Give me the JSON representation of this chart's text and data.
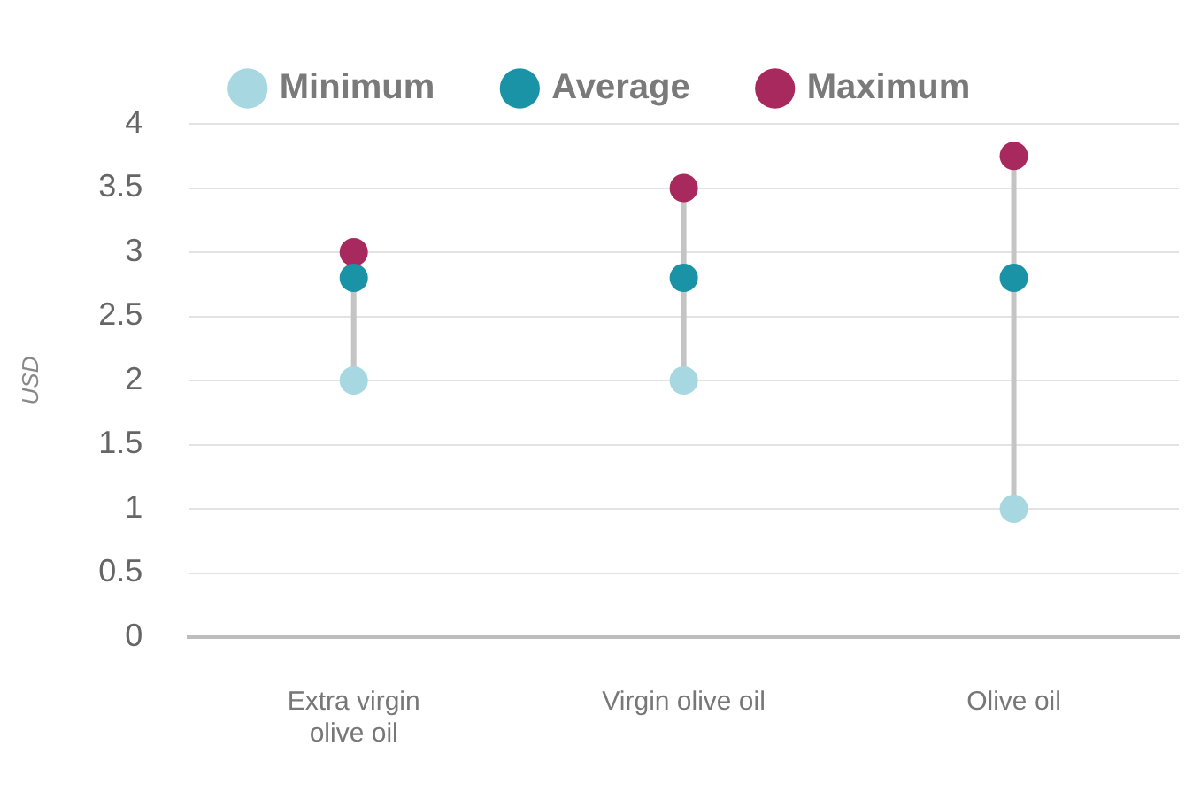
{
  "chart_data": {
    "type": "scatter",
    "ylabel": "USD",
    "categories": [
      "Extra virgin olive oil",
      "Virgin olive oil",
      "Olive oil"
    ],
    "series": [
      {
        "name": "Minimum",
        "color": "#a7d8e2",
        "values": [
          2,
          2,
          1
        ]
      },
      {
        "name": "Average",
        "color": "#1a93a6",
        "values": [
          2.8,
          2.8,
          2.8
        ]
      },
      {
        "name": "Maximum",
        "color": "#a8295e",
        "values": [
          3,
          3.5,
          3.75
        ]
      }
    ],
    "ylim": [
      0,
      4
    ],
    "yticks": [
      0,
      0.5,
      1,
      1.5,
      2,
      2.5,
      3,
      3.5,
      4
    ],
    "grid": "y",
    "legend": "top",
    "marker": "circle"
  }
}
